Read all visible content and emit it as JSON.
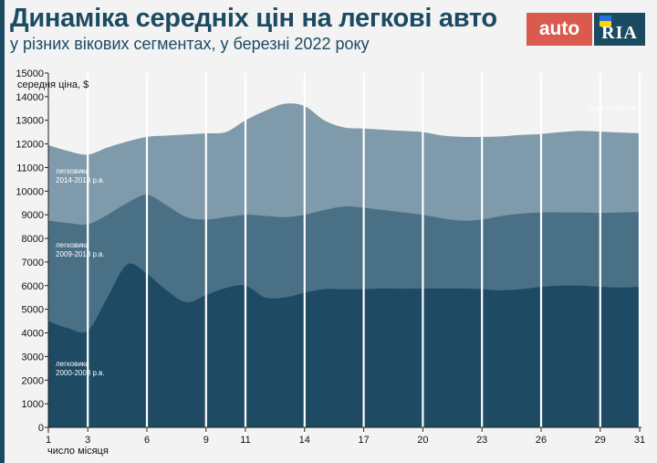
{
  "header": {
    "title": "Динаміка середніх цін на легкові авто",
    "subtitle": "у різних вікових сегментах, у березні 2022 року"
  },
  "logo": {
    "left_text": "auto",
    "right_text": "RIA"
  },
  "chart_data": {
    "type": "area",
    "title": "Динаміка середніх цін на легкові авто",
    "subtitle": "у різних вікових сегментах, у березні 2022 року",
    "xlabel": "число місяця",
    "ylabel": "середня ціна, $",
    "xlim": [
      1,
      31
    ],
    "ylim": [
      0,
      15000
    ],
    "x_ticks": [
      1,
      3,
      6,
      9,
      11,
      14,
      17,
      20,
      23,
      26,
      29,
      31
    ],
    "y_ticks": [
      0,
      1000,
      2000,
      3000,
      4000,
      5000,
      6000,
      7000,
      8000,
      9000,
      10000,
      11000,
      12000,
      13000,
      14000,
      15000
    ],
    "source": "дані: AUTO.RIA",
    "colors": {
      "top": "#7f9aaa",
      "mid": "#4a7086",
      "bottom": "#1e4a63",
      "grid": "#ffffff",
      "background": "#f3f3f3"
    },
    "series": [
      {
        "name": "легковики 2014-2018 р.в.",
        "x": [
          1,
          2,
          3,
          4,
          5,
          6,
          7,
          8,
          9,
          10,
          11,
          12,
          13,
          14,
          15,
          16,
          17,
          18,
          19,
          20,
          21,
          22,
          23,
          24,
          25,
          26,
          27,
          28,
          29,
          30,
          31
        ],
        "values": [
          11950,
          11700,
          11550,
          11850,
          12100,
          12300,
          12350,
          12400,
          12450,
          12500,
          13000,
          13400,
          13700,
          13600,
          13000,
          12700,
          12650,
          12600,
          12550,
          12500,
          12350,
          12300,
          12300,
          12320,
          12380,
          12420,
          12500,
          12550,
          12520,
          12480,
          12450
        ]
      },
      {
        "name": "легковики 2009-2013 р.в.",
        "x": [
          1,
          2,
          3,
          4,
          5,
          6,
          7,
          8,
          9,
          10,
          11,
          12,
          13,
          14,
          15,
          16,
          17,
          18,
          19,
          20,
          21,
          22,
          23,
          24,
          25,
          26,
          27,
          28,
          29,
          30,
          31
        ],
        "values": [
          8750,
          8650,
          8600,
          9000,
          9500,
          9850,
          9400,
          8900,
          8800,
          8900,
          9000,
          8950,
          8900,
          9000,
          9200,
          9350,
          9300,
          9200,
          9100,
          9000,
          8850,
          8750,
          8800,
          8950,
          9050,
          9100,
          9100,
          9100,
          9080,
          9100,
          9120
        ]
      },
      {
        "name": "легковики 2000-2008 р.в.",
        "x": [
          1,
          2,
          3,
          4,
          5,
          6,
          7,
          8,
          9,
          10,
          11,
          12,
          13,
          14,
          15,
          16,
          17,
          18,
          19,
          20,
          21,
          22,
          23,
          24,
          25,
          26,
          27,
          28,
          29,
          30,
          31
        ],
        "values": [
          4500,
          4200,
          4100,
          5500,
          6900,
          6500,
          5800,
          5300,
          5600,
          5900,
          6000,
          5500,
          5500,
          5700,
          5850,
          5850,
          5850,
          5880,
          5870,
          5880,
          5880,
          5880,
          5850,
          5800,
          5850,
          5950,
          6000,
          6000,
          5950,
          5920,
          5950
        ]
      }
    ],
    "series_labels": [
      {
        "line1": "легковики",
        "line2": "2014-2018 р.в."
      },
      {
        "line1": "легковики",
        "line2": "2009-2013 р.в."
      },
      {
        "line1": "легковики",
        "line2": "2000-2008 р.в."
      }
    ]
  }
}
